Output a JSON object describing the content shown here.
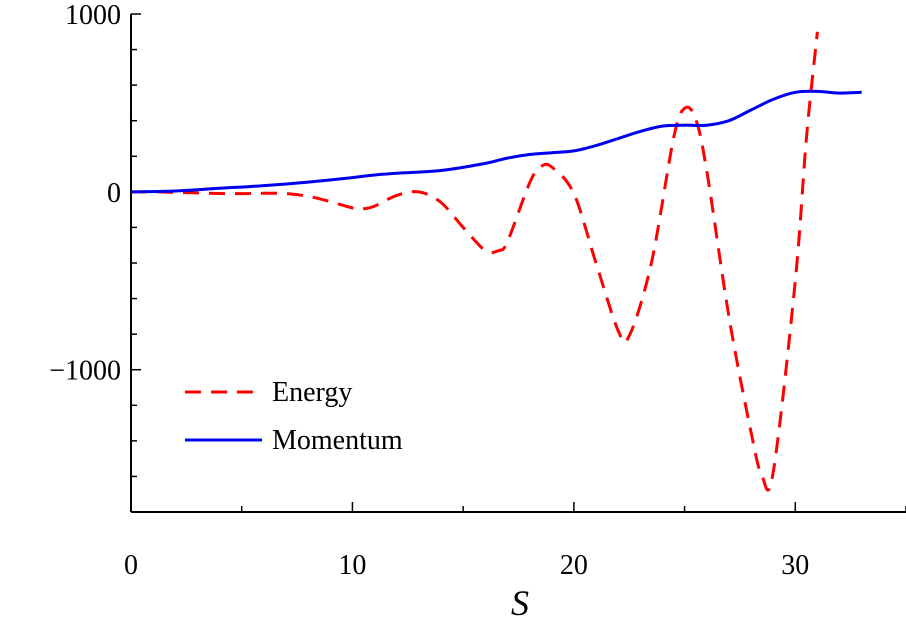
{
  "chart_data": {
    "type": "line",
    "title": "",
    "xlabel": "S",
    "ylabel": "",
    "xlim": [
      0,
      35
    ],
    "ylim": [
      -1800,
      1000
    ],
    "x_ticks": [
      0,
      10,
      20,
      30
    ],
    "x_tick_labels": [
      "0",
      "10",
      "20",
      "30"
    ],
    "y_ticks": [
      1000,
      0,
      -1000
    ],
    "y_tick_labels": [
      "1000",
      "0",
      "−1000"
    ],
    "x_minor_step": 5,
    "y_minor_step": 200,
    "grid": false,
    "legend_position": "bottom-left",
    "series": [
      {
        "name": "Energy",
        "color": "#ff0000",
        "dash": "dashed",
        "points": [
          [
            0,
            0
          ],
          [
            1,
            0
          ],
          [
            2,
            -3
          ],
          [
            3,
            -6
          ],
          [
            4,
            -9
          ],
          [
            5,
            -10
          ],
          [
            6,
            -8
          ],
          [
            7,
            -10
          ],
          [
            8,
            -25
          ],
          [
            9,
            -55
          ],
          [
            10,
            -90
          ],
          [
            10.5,
            -95
          ],
          [
            11,
            -80
          ],
          [
            12,
            -20
          ],
          [
            13,
            0
          ],
          [
            14,
            -60
          ],
          [
            15,
            -200
          ],
          [
            16,
            -330
          ],
          [
            16.6,
            -330
          ],
          [
            17,
            -280
          ],
          [
            18,
            50
          ],
          [
            18.5,
            140
          ],
          [
            19,
            140
          ],
          [
            20,
            -10
          ],
          [
            21,
            -400
          ],
          [
            22,
            -780
          ],
          [
            22.5,
            -810
          ],
          [
            23.5,
            -400
          ],
          [
            24.5,
            300
          ],
          [
            25,
            470
          ],
          [
            25.5,
            410
          ],
          [
            26,
            120
          ],
          [
            27,
            -700
          ],
          [
            28,
            -1350
          ],
          [
            28.5,
            -1600
          ],
          [
            29,
            -1580
          ],
          [
            30,
            -500
          ],
          [
            30.5,
            300
          ],
          [
            31,
            900
          ]
        ]
      },
      {
        "name": "Momentum",
        "color": "#0000ee",
        "dash": "solid",
        "points": [
          [
            0,
            0
          ],
          [
            2,
            5
          ],
          [
            4,
            20
          ],
          [
            6,
            35
          ],
          [
            8,
            55
          ],
          [
            10,
            80
          ],
          [
            11,
            95
          ],
          [
            12,
            105
          ],
          [
            14,
            120
          ],
          [
            16,
            160
          ],
          [
            17,
            190
          ],
          [
            18,
            210
          ],
          [
            19,
            220
          ],
          [
            20,
            230
          ],
          [
            21,
            260
          ],
          [
            22,
            300
          ],
          [
            23,
            340
          ],
          [
            24,
            370
          ],
          [
            25,
            375
          ],
          [
            26,
            375
          ],
          [
            27,
            400
          ],
          [
            28,
            460
          ],
          [
            29,
            520
          ],
          [
            30,
            560
          ],
          [
            31,
            565
          ],
          [
            32,
            555
          ],
          [
            33,
            560
          ]
        ]
      }
    ]
  }
}
